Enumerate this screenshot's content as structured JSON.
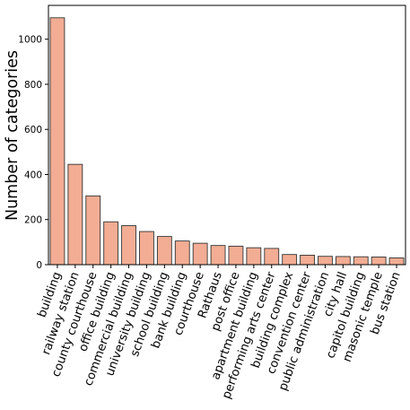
{
  "chart_data": {
    "type": "bar",
    "title": "",
    "xlabel": "",
    "ylabel": "Number of categories",
    "ylim": [
      0,
      1150
    ],
    "yticks": [
      0,
      200,
      400,
      600,
      800,
      1000
    ],
    "grid": false,
    "bar_color": "#f2ad94",
    "bar_edge_color": "#333333",
    "categories": [
      "building",
      "railway station",
      "county courthouse",
      "office building",
      "commercial building",
      "university building",
      "school building",
      "bank building",
      "courthouse",
      "Rathaus",
      "post office",
      "apartment building",
      "performing arts center",
      "building complex",
      "convention center",
      "public administration",
      "city hall",
      "capitol building",
      "masonic temple",
      "bus station"
    ],
    "values": [
      1095,
      445,
      305,
      190,
      173,
      147,
      125,
      105,
      95,
      85,
      82,
      75,
      72,
      45,
      42,
      37,
      36,
      35,
      34,
      30
    ]
  }
}
